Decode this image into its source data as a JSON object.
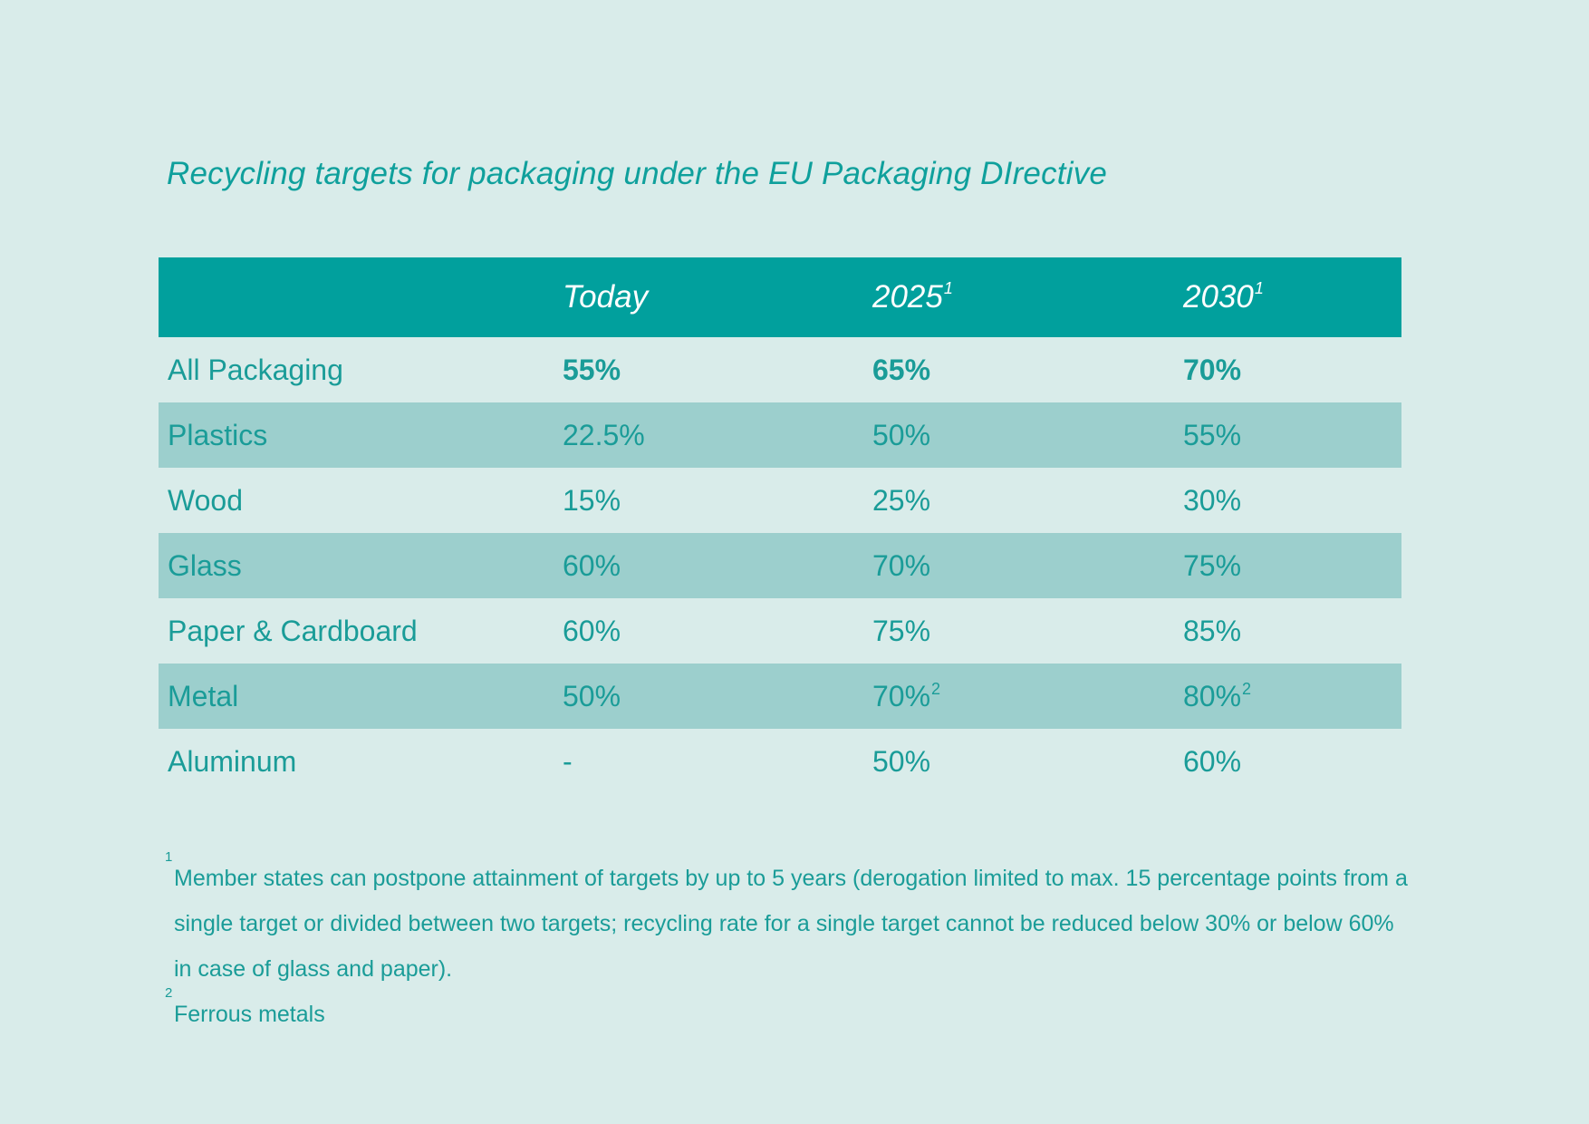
{
  "title": "Recycling targets for packaging under the EU Packaging DIrective",
  "table": {
    "headers": [
      {
        "label": "",
        "sup": ""
      },
      {
        "label": "Today",
        "sup": ""
      },
      {
        "label": "2025",
        "sup": "1"
      },
      {
        "label": "2030",
        "sup": "1"
      }
    ],
    "rows": [
      {
        "material": "All Packaging",
        "today": "55%",
        "y2025": "65%",
        "y2025_sup": "",
        "y2030": "70%",
        "y2030_sup": ""
      },
      {
        "material": "Plastics",
        "today": "22.5%",
        "y2025": "50%",
        "y2025_sup": "",
        "y2030": "55%",
        "y2030_sup": ""
      },
      {
        "material": "Wood",
        "today": "15%",
        "y2025": "25%",
        "y2025_sup": "",
        "y2030": "30%",
        "y2030_sup": ""
      },
      {
        "material": "Glass",
        "today": "60%",
        "y2025": "70%",
        "y2025_sup": "",
        "y2030": "75%",
        "y2030_sup": ""
      },
      {
        "material": "Paper & Cardboard",
        "today": "60%",
        "y2025": "75%",
        "y2025_sup": "",
        "y2030": "85%",
        "y2030_sup": ""
      },
      {
        "material": "Metal",
        "today": "50%",
        "y2025": "70%",
        "y2025_sup": "2",
        "y2030": "80%",
        "y2030_sup": "2"
      },
      {
        "material": "Aluminum",
        "today": "-",
        "y2025": "50%",
        "y2025_sup": "",
        "y2030": "60%",
        "y2030_sup": ""
      }
    ]
  },
  "footnotes": [
    {
      "mark": "1",
      "text": "Member states can postpone attainment of targets by up to 5 years (derogation limited to max. 15 percentage points from a single target or divided between two targets; recycling rate for a single target cannot be reduced below 30% or below 60% in case of glass and paper)."
    },
    {
      "mark": "2",
      "text": "Ferrous metals"
    }
  ],
  "colors": {
    "background": "#d9ecea",
    "header_fill": "#01a09d",
    "shaded_row": "#9ccfcd",
    "text": "#1a9c98"
  }
}
